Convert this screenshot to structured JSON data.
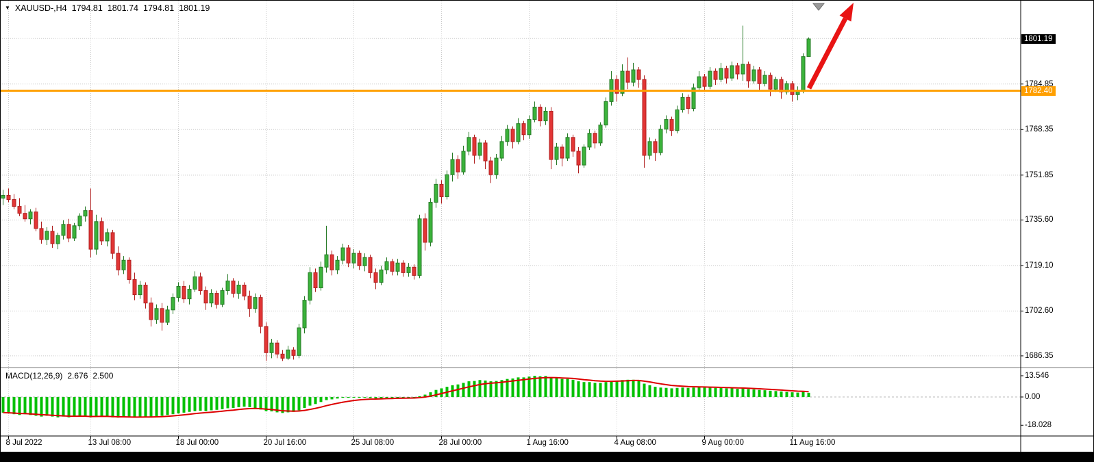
{
  "header_icons": {
    "dropdown": "▼"
  },
  "colors": {
    "background": "#ffffff",
    "bull": "#3bb33b",
    "bull_border": "#267a26",
    "bear": "#e23535",
    "bear_border": "#b02020",
    "grid": "#c9c9c9",
    "macd_bar": "#00c000",
    "macd_signal": "#dd0000",
    "current_price_bg": "#000000",
    "axis_text": "#000000"
  },
  "chart_data": [
    {
      "type": "candlestick",
      "symbol": "XAUUSD-",
      "timeframe": "H4",
      "ohlc_header": {
        "symbol_period": "XAUUSD-,H4",
        "open": "1794.81",
        "high": "1801.74",
        "low": "1794.81",
        "close": "1801.19"
      },
      "current_price": {
        "label": "1801.19",
        "price": 1801.19
      },
      "horizontal_line": {
        "label": "1782.40",
        "price": 1782.4,
        "color": "#ff9f00"
      },
      "hidden_grid_price": 1801.35,
      "ylim": [
        1682,
        1815
      ],
      "y_ticks": [
        {
          "label": "1784.85",
          "price": 1784.85
        },
        {
          "label": "1768.35",
          "price": 1768.35
        },
        {
          "label": "1751.85",
          "price": 1751.85
        },
        {
          "label": "1735.60",
          "price": 1735.6
        },
        {
          "label": "1719.10",
          "price": 1719.1
        },
        {
          "label": "1702.60",
          "price": 1702.6
        },
        {
          "label": "1686.35",
          "price": 1686.35
        }
      ],
      "x_ticks": [
        {
          "label": "8 Jul 2022",
          "candle_index": 1
        },
        {
          "label": "13 Jul 08:00",
          "candle_index": 16
        },
        {
          "label": "18 Jul 00:00",
          "candle_index": 32
        },
        {
          "label": "20 Jul 16:00",
          "candle_index": 48
        },
        {
          "label": "25 Jul 08:00",
          "candle_index": 64
        },
        {
          "label": "28 Jul 00:00",
          "candle_index": 80
        },
        {
          "label": "1 Aug 16:00",
          "candle_index": 96
        },
        {
          "label": "4 Aug 08:00",
          "candle_index": 112
        },
        {
          "label": "9 Aug 00:00",
          "candle_index": 128
        },
        {
          "label": "11 Aug 16:00",
          "candle_index": 144
        }
      ],
      "candles": [
        [
          1743.5,
          1746.5,
          1741.0,
          1744.5
        ],
        [
          1744.5,
          1747.0,
          1742.0,
          1743.0
        ],
        [
          1743.0,
          1745.0,
          1739.5,
          1740.5
        ],
        [
          1740.5,
          1743.5,
          1737.0,
          1738.0
        ],
        [
          1738.0,
          1741.0,
          1735.0,
          1736.0
        ],
        [
          1736.0,
          1739.5,
          1734.0,
          1738.5
        ],
        [
          1738.5,
          1740.0,
          1731.5,
          1732.5
        ],
        [
          1732.5,
          1735.0,
          1727.0,
          1728.5
        ],
        [
          1728.5,
          1733.0,
          1726.5,
          1731.5
        ],
        [
          1731.5,
          1733.5,
          1725.5,
          1727.0
        ],
        [
          1727.0,
          1731.0,
          1725.0,
          1730.0
        ],
        [
          1730.0,
          1735.5,
          1728.5,
          1734.0
        ],
        [
          1734.0,
          1736.0,
          1727.5,
          1729.0
        ],
        [
          1729.0,
          1734.5,
          1728.0,
          1733.5
        ],
        [
          1733.5,
          1738.0,
          1732.0,
          1737.0
        ],
        [
          1737.0,
          1740.5,
          1735.0,
          1739.0
        ],
        [
          1739.0,
          1747.0,
          1722.0,
          1725.0
        ],
        [
          1725.0,
          1737.5,
          1723.0,
          1735.0
        ],
        [
          1735.0,
          1736.5,
          1726.5,
          1728.0
        ],
        [
          1728.0,
          1732.5,
          1726.0,
          1731.0
        ],
        [
          1731.0,
          1732.0,
          1721.5,
          1723.5
        ],
        [
          1723.5,
          1726.0,
          1715.5,
          1717.5
        ],
        [
          1717.5,
          1722.5,
          1716.0,
          1721.0
        ],
        [
          1721.0,
          1722.0,
          1712.5,
          1714.0
        ],
        [
          1714.0,
          1716.5,
          1706.5,
          1708.5
        ],
        [
          1708.5,
          1713.5,
          1707.0,
          1712.0
        ],
        [
          1712.0,
          1713.0,
          1703.5,
          1705.5
        ],
        [
          1705.5,
          1707.5,
          1697.0,
          1699.5
        ],
        [
          1699.5,
          1705.0,
          1698.0,
          1703.5
        ],
        [
          1703.5,
          1705.5,
          1695.5,
          1698.5
        ],
        [
          1698.5,
          1704.5,
          1697.5,
          1703.0
        ],
        [
          1703.0,
          1709.0,
          1701.5,
          1707.5
        ],
        [
          1707.5,
          1713.0,
          1706.0,
          1711.5
        ],
        [
          1711.5,
          1713.5,
          1705.5,
          1707.0
        ],
        [
          1707.0,
          1712.0,
          1705.0,
          1710.5
        ],
        [
          1710.5,
          1717.0,
          1709.5,
          1715.0
        ],
        [
          1715.0,
          1716.5,
          1708.5,
          1710.0
        ],
        [
          1710.0,
          1711.5,
          1703.0,
          1705.5
        ],
        [
          1705.5,
          1710.5,
          1704.0,
          1709.0
        ],
        [
          1709.0,
          1710.0,
          1703.5,
          1705.0
        ],
        [
          1705.0,
          1711.0,
          1704.0,
          1710.0
        ],
        [
          1710.0,
          1716.0,
          1708.5,
          1713.5
        ],
        [
          1713.5,
          1714.5,
          1707.5,
          1709.0
        ],
        [
          1709.0,
          1713.5,
          1707.0,
          1712.0
        ],
        [
          1712.0,
          1713.0,
          1706.5,
          1708.0
        ],
        [
          1708.0,
          1710.0,
          1700.5,
          1703.5
        ],
        [
          1703.5,
          1709.0,
          1702.0,
          1707.5
        ],
        [
          1707.5,
          1708.5,
          1694.5,
          1697.0
        ],
        [
          1697.0,
          1698.5,
          1684.5,
          1687.5
        ],
        [
          1687.5,
          1692.5,
          1685.5,
          1691.0
        ],
        [
          1691.0,
          1692.0,
          1685.5,
          1687.0
        ],
        [
          1687.0,
          1688.5,
          1684.5,
          1685.5
        ],
        [
          1685.5,
          1690.0,
          1684.8,
          1688.5
        ],
        [
          1688.5,
          1689.5,
          1685.0,
          1686.5
        ],
        [
          1686.5,
          1698.0,
          1685.5,
          1696.5
        ],
        [
          1696.5,
          1708.0,
          1694.5,
          1706.5
        ],
        [
          1706.5,
          1718.5,
          1705.0,
          1716.5
        ],
        [
          1716.5,
          1718.0,
          1709.5,
          1711.0
        ],
        [
          1711.0,
          1720.5,
          1710.0,
          1718.5
        ],
        [
          1718.5,
          1733.5,
          1716.5,
          1723.0
        ],
        [
          1723.0,
          1724.5,
          1715.5,
          1717.5
        ],
        [
          1717.5,
          1722.5,
          1716.0,
          1721.0
        ],
        [
          1721.0,
          1727.0,
          1719.5,
          1725.5
        ],
        [
          1725.5,
          1726.5,
          1718.5,
          1720.0
        ],
        [
          1720.0,
          1725.0,
          1718.0,
          1723.5
        ],
        [
          1723.5,
          1724.5,
          1717.5,
          1719.0
        ],
        [
          1719.0,
          1723.5,
          1717.0,
          1722.0
        ],
        [
          1722.0,
          1723.0,
          1714.5,
          1716.5
        ],
        [
          1716.5,
          1718.0,
          1710.5,
          1713.0
        ],
        [
          1713.0,
          1719.0,
          1712.0,
          1717.5
        ],
        [
          1717.5,
          1722.0,
          1716.0,
          1720.5
        ],
        [
          1720.5,
          1721.5,
          1715.5,
          1717.0
        ],
        [
          1717.0,
          1721.5,
          1715.5,
          1720.0
        ],
        [
          1720.0,
          1721.0,
          1715.0,
          1716.5
        ],
        [
          1716.5,
          1720.0,
          1715.0,
          1718.5
        ],
        [
          1718.5,
          1719.5,
          1714.0,
          1715.5
        ],
        [
          1715.5,
          1737.5,
          1714.5,
          1736.0
        ],
        [
          1736.0,
          1738.0,
          1724.5,
          1727.5
        ],
        [
          1727.5,
          1743.5,
          1726.0,
          1742.0
        ],
        [
          1742.0,
          1750.5,
          1740.0,
          1748.5
        ],
        [
          1748.5,
          1750.0,
          1741.5,
          1744.0
        ],
        [
          1744.0,
          1753.5,
          1743.0,
          1752.0
        ],
        [
          1752.0,
          1760.0,
          1749.5,
          1757.5
        ],
        [
          1757.5,
          1759.0,
          1750.5,
          1753.0
        ],
        [
          1753.0,
          1762.5,
          1752.0,
          1760.5
        ],
        [
          1760.5,
          1767.5,
          1759.0,
          1765.5
        ],
        [
          1765.5,
          1766.5,
          1756.0,
          1759.0
        ],
        [
          1759.0,
          1765.0,
          1757.5,
          1763.5
        ],
        [
          1763.5,
          1764.5,
          1754.0,
          1757.0
        ],
        [
          1757.0,
          1758.5,
          1749.0,
          1752.0
        ],
        [
          1752.0,
          1759.5,
          1750.5,
          1758.0
        ],
        [
          1758.0,
          1766.0,
          1757.0,
          1764.0
        ],
        [
          1764.0,
          1770.0,
          1762.5,
          1768.5
        ],
        [
          1768.5,
          1769.5,
          1761.5,
          1764.0
        ],
        [
          1764.0,
          1772.5,
          1763.0,
          1770.5
        ],
        [
          1770.5,
          1771.5,
          1764.5,
          1766.5
        ],
        [
          1766.5,
          1773.5,
          1765.0,
          1772.0
        ],
        [
          1772.0,
          1778.5,
          1771.0,
          1776.5
        ],
        [
          1776.5,
          1777.5,
          1769.5,
          1771.5
        ],
        [
          1771.5,
          1776.5,
          1770.0,
          1775.0
        ],
        [
          1775.0,
          1776.5,
          1754.0,
          1757.5
        ],
        [
          1757.5,
          1763.5,
          1755.5,
          1762.0
        ],
        [
          1762.0,
          1763.0,
          1755.0,
          1758.0
        ],
        [
          1758.0,
          1767.0,
          1757.0,
          1765.5
        ],
        [
          1765.5,
          1766.5,
          1758.5,
          1760.5
        ],
        [
          1760.5,
          1762.0,
          1752.5,
          1755.5
        ],
        [
          1755.5,
          1763.0,
          1754.5,
          1762.0
        ],
        [
          1762.0,
          1768.5,
          1761.0,
          1767.0
        ],
        [
          1767.0,
          1768.0,
          1761.5,
          1763.5
        ],
        [
          1763.5,
          1771.0,
          1762.5,
          1770.0
        ],
        [
          1770.0,
          1780.0,
          1769.0,
          1778.5
        ],
        [
          1778.5,
          1789.5,
          1777.0,
          1786.5
        ],
        [
          1786.5,
          1788.0,
          1778.5,
          1781.5
        ],
        [
          1781.5,
          1792.0,
          1780.5,
          1789.5
        ],
        [
          1789.5,
          1794.5,
          1783.0,
          1785.5
        ],
        [
          1785.5,
          1792.5,
          1784.0,
          1790.0
        ],
        [
          1790.0,
          1791.0,
          1783.5,
          1786.5
        ],
        [
          1786.5,
          1788.0,
          1754.5,
          1759.0
        ],
        [
          1759.0,
          1765.5,
          1757.5,
          1764.0
        ],
        [
          1764.0,
          1765.0,
          1757.0,
          1760.0
        ],
        [
          1760.0,
          1770.0,
          1759.0,
          1768.5
        ],
        [
          1768.5,
          1773.5,
          1767.0,
          1772.0
        ],
        [
          1772.0,
          1773.0,
          1766.0,
          1768.0
        ],
        [
          1768.0,
          1777.0,
          1767.0,
          1775.5
        ],
        [
          1775.5,
          1781.5,
          1774.5,
          1780.0
        ],
        [
          1780.0,
          1781.0,
          1774.0,
          1776.0
        ],
        [
          1776.0,
          1785.0,
          1775.0,
          1783.5
        ],
        [
          1783.5,
          1789.5,
          1782.5,
          1787.5
        ],
        [
          1787.5,
          1788.5,
          1782.0,
          1784.0
        ],
        [
          1784.0,
          1791.0,
          1783.0,
          1789.5
        ],
        [
          1789.5,
          1790.5,
          1784.5,
          1786.5
        ],
        [
          1786.5,
          1792.5,
          1785.5,
          1790.5
        ],
        [
          1790.5,
          1791.5,
          1785.0,
          1787.0
        ],
        [
          1787.0,
          1793.0,
          1786.0,
          1791.5
        ],
        [
          1791.5,
          1792.5,
          1786.5,
          1788.5
        ],
        [
          1788.5,
          1806.0,
          1786.0,
          1792.0
        ],
        [
          1792.0,
          1793.0,
          1783.5,
          1786.0
        ],
        [
          1786.0,
          1791.5,
          1785.0,
          1790.0
        ],
        [
          1790.0,
          1791.0,
          1782.5,
          1785.0
        ],
        [
          1785.0,
          1789.5,
          1784.0,
          1788.0
        ],
        [
          1788.0,
          1789.0,
          1780.5,
          1783.0
        ],
        [
          1783.0,
          1787.5,
          1782.0,
          1786.5
        ],
        [
          1786.5,
          1787.5,
          1779.5,
          1782.0
        ],
        [
          1782.0,
          1786.0,
          1781.0,
          1785.0
        ],
        [
          1785.0,
          1786.0,
          1778.5,
          1781.0
        ],
        [
          1781.0,
          1784.0,
          1779.0,
          1782.5
        ],
        [
          1782.5,
          1796.0,
          1781.5,
          1794.8
        ],
        [
          1794.81,
          1801.74,
          1794.81,
          1801.19
        ]
      ],
      "annotations": [
        {
          "type": "arrow",
          "name": "red-trend-arrow",
          "from_xy": [
            1181,
            129
          ],
          "to_xy": [
            1246,
            4
          ],
          "color": "#e81414"
        },
        {
          "type": "marker",
          "name": "gray-down-triangle",
          "x": 1195,
          "y": 5,
          "color": "#9a9a9a"
        }
      ]
    },
    {
      "type": "bar",
      "name": "MACD",
      "title": "MACD(12,26,9)",
      "macd_value": "2.676",
      "signal_value": "2.500",
      "signal_period": 9,
      "ylim": [
        -18.028,
        13.546
      ],
      "y_ticks": [
        {
          "label": "13.546",
          "value": 13.546
        },
        {
          "label": "0.00",
          "value": 0
        },
        {
          "label": "-18.028",
          "value": -18.028
        }
      ],
      "histogram": [
        -10.0,
        -10.5,
        -11.0,
        -11.5,
        -11.0,
        -11.5,
        -12.0,
        -12.5,
        -12.0,
        -12.5,
        -13.0,
        -12.5,
        -13.0,
        -12.5,
        -12.0,
        -12.5,
        -13.0,
        -12.5,
        -12.0,
        -12.5,
        -13.0,
        -13.2,
        -12.8,
        -13.0,
        -13.2,
        -12.8,
        -12.5,
        -12.8,
        -12.2,
        -12.0,
        -11.5,
        -11.0,
        -10.5,
        -10.0,
        -9.5,
        -9.0,
        -8.8,
        -9.0,
        -8.5,
        -8.2,
        -7.8,
        -7.2,
        -7.0,
        -6.5,
        -6.2,
        -6.5,
        -7.0,
        -8.0,
        -9.0,
        -9.2,
        -9.8,
        -10.2,
        -9.8,
        -9.5,
        -8.5,
        -7.0,
        -5.5,
        -4.5,
        -3.2,
        -2.0,
        -1.5,
        -1.0,
        -0.5,
        -0.5,
        -0.2,
        -0.4,
        -0.3,
        -0.6,
        -1.0,
        -0.8,
        -0.5,
        -0.5,
        -0.3,
        -0.5,
        -0.4,
        -0.6,
        0.5,
        1.5,
        3.0,
        4.5,
        5.5,
        6.5,
        7.5,
        8.0,
        9.0,
        10.0,
        10.2,
        10.8,
        10.5,
        10.0,
        10.2,
        10.8,
        11.5,
        11.8,
        12.5,
        12.5,
        13.0,
        13.5,
        13.2,
        13.4,
        12.5,
        12.0,
        11.5,
        11.5,
        11.0,
        10.0,
        9.5,
        9.5,
        9.0,
        9.0,
        9.5,
        10.0,
        10.5,
        10.8,
        11.0,
        11.0,
        10.5,
        8.5,
        7.5,
        6.5,
        6.0,
        5.8,
        5.5,
        5.8,
        6.0,
        5.8,
        6.0,
        6.2,
        6.0,
        6.0,
        5.8,
        5.8,
        5.5,
        5.5,
        5.2,
        5.5,
        5.0,
        4.8,
        4.5,
        4.3,
        4.0,
        3.8,
        3.5,
        3.2,
        3.0,
        2.8,
        3.2,
        2.676
      ]
    }
  ]
}
